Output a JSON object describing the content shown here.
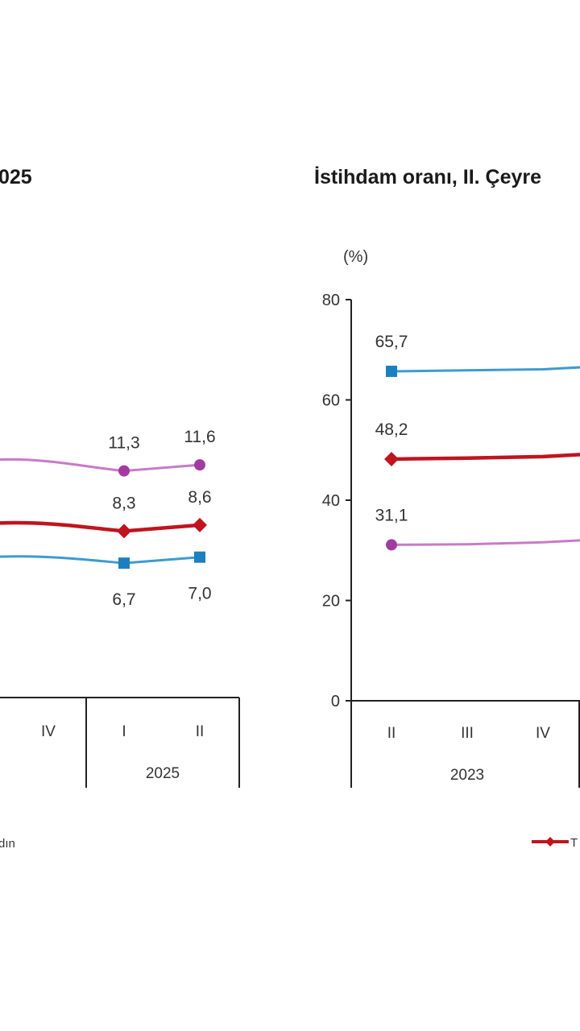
{
  "colors": {
    "erkek": "#3d9bd0",
    "erkek_marker": "#1e7fc0",
    "toplam": "#c0141e",
    "kadin": "#c87ac8",
    "kadin_marker": "#a33aa3",
    "axis": "#222222"
  },
  "chart_data": [
    {
      "type": "line",
      "title": "025",
      "x_visible": [
        "IV",
        "I",
        "II"
      ],
      "x_group_labels": [
        "2025"
      ],
      "legend_visible_text": "dın",
      "series": [
        {
          "key": "kadin",
          "values_visible": [
            null,
            11.3,
            11.6
          ],
          "labels": [
            "",
            "11,3",
            "11,6"
          ]
        },
        {
          "key": "toplam",
          "values_visible": [
            null,
            8.3,
            8.6
          ],
          "labels": [
            "",
            "8,3",
            "8,6"
          ]
        },
        {
          "key": "erkek",
          "values_visible": [
            null,
            6.7,
            7.0
          ],
          "labels": [
            "",
            "6,7",
            "7,0"
          ]
        }
      ]
    },
    {
      "type": "line",
      "title": "İstihdam oranı, II. Çeyre",
      "ylabel": "(%)",
      "ylim": [
        0,
        80
      ],
      "y_ticks": [
        "0",
        "20",
        "40",
        "60",
        "80"
      ],
      "y_tick_values": [
        0,
        20,
        40,
        60,
        80
      ],
      "x_visible": [
        "II",
        "III",
        "IV"
      ],
      "x_group_labels": [
        "2023"
      ],
      "legend_visible_text": "T",
      "series": [
        {
          "key": "erkek",
          "values": [
            65.7,
            65.9,
            66.1
          ],
          "labels": [
            "65,7",
            "",
            ""
          ]
        },
        {
          "key": "toplam",
          "values": [
            48.2,
            48.4,
            48.7
          ],
          "labels": [
            "48,2",
            "",
            ""
          ]
        },
        {
          "key": "kadin",
          "values": [
            31.1,
            31.2,
            31.6
          ],
          "labels": [
            "31,1",
            "",
            ""
          ]
        }
      ]
    }
  ]
}
